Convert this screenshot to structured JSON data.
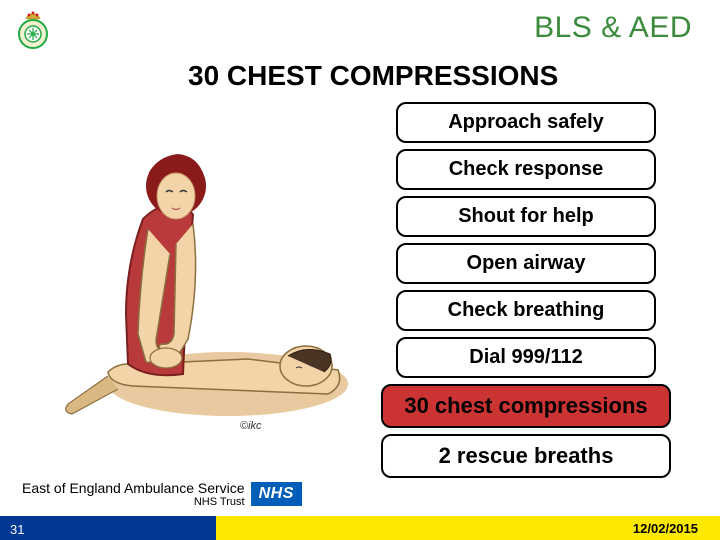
{
  "title": "BLS & AED",
  "heading": "30 CHEST COMPRESSIONS",
  "steps": [
    {
      "label": "Approach safely",
      "class": "default",
      "wide": false
    },
    {
      "label": "Check response",
      "class": "default",
      "wide": false
    },
    {
      "label": "Shout for help",
      "class": "default",
      "wide": false
    },
    {
      "label": "Open airway",
      "class": "default",
      "wide": false
    },
    {
      "label": "Check breathing",
      "class": "default",
      "wide": false
    },
    {
      "label": "Dial 999/112",
      "class": "default",
      "wide": false
    },
    {
      "label": "30 chest compressions",
      "class": "highlight",
      "wide": true
    },
    {
      "label": "2 rescue breaths",
      "class": "rescue",
      "wide": true
    }
  ],
  "org": {
    "line1": "East of England Ambulance Service",
    "line2": "NHS Trust",
    "logo": "NHS"
  },
  "slide_number": "31",
  "date": "12/02/2015",
  "illustration_credit": "©ikc",
  "colors": {
    "title_green": "#3c8b3c",
    "step_highlight_bg": "#cc3333",
    "footer_blue": "#003893",
    "footer_yellow": "#fde800",
    "nhs_blue": "#005eb8"
  }
}
